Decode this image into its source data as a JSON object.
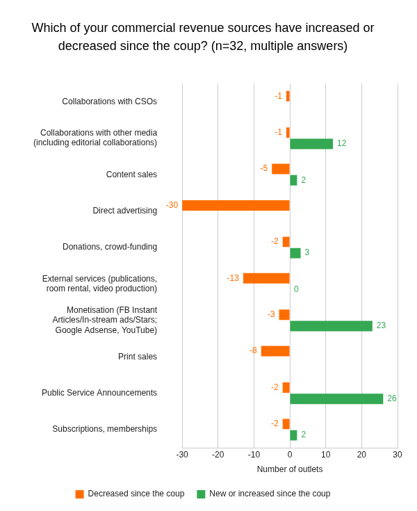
{
  "chart_data": {
    "type": "bar",
    "orientation": "horizontal",
    "title": "Which of your commercial revenue sources have increased or decreased since the coup? (n=32, multiple answers)",
    "x_label": "Number of outlets",
    "categories": [
      "Collaborations with CSOs",
      "Collaborations with other media (including editorial collaborations)",
      "Content sales",
      "Direct advertising",
      "Donations, crowd-funding",
      "External services (publications, room rental, video production)",
      "Monetisation (FB Instant Articles/In-stream ads/Stars; Google Adsense, YouTube)",
      "Print sales",
      "Public Service Announcements",
      "Subscriptions, memberships"
    ],
    "series": [
      {
        "name": "Decreased since the coup",
        "color": "#ff6d01",
        "values": [
          -1,
          -1,
          -5,
          -30,
          -2,
          -13,
          -3,
          -8,
          -2,
          -2
        ]
      },
      {
        "name": "New or increased since the coup",
        "color": "#34a853",
        "values": [
          null,
          12,
          2,
          null,
          3,
          0,
          23,
          null,
          26,
          2
        ]
      }
    ],
    "xlim": [
      -30,
      30
    ],
    "xticks": [
      -30,
      -20,
      -10,
      0,
      10,
      20,
      30
    ],
    "grid": true,
    "legend": "bottom",
    "data_labels": true
  }
}
